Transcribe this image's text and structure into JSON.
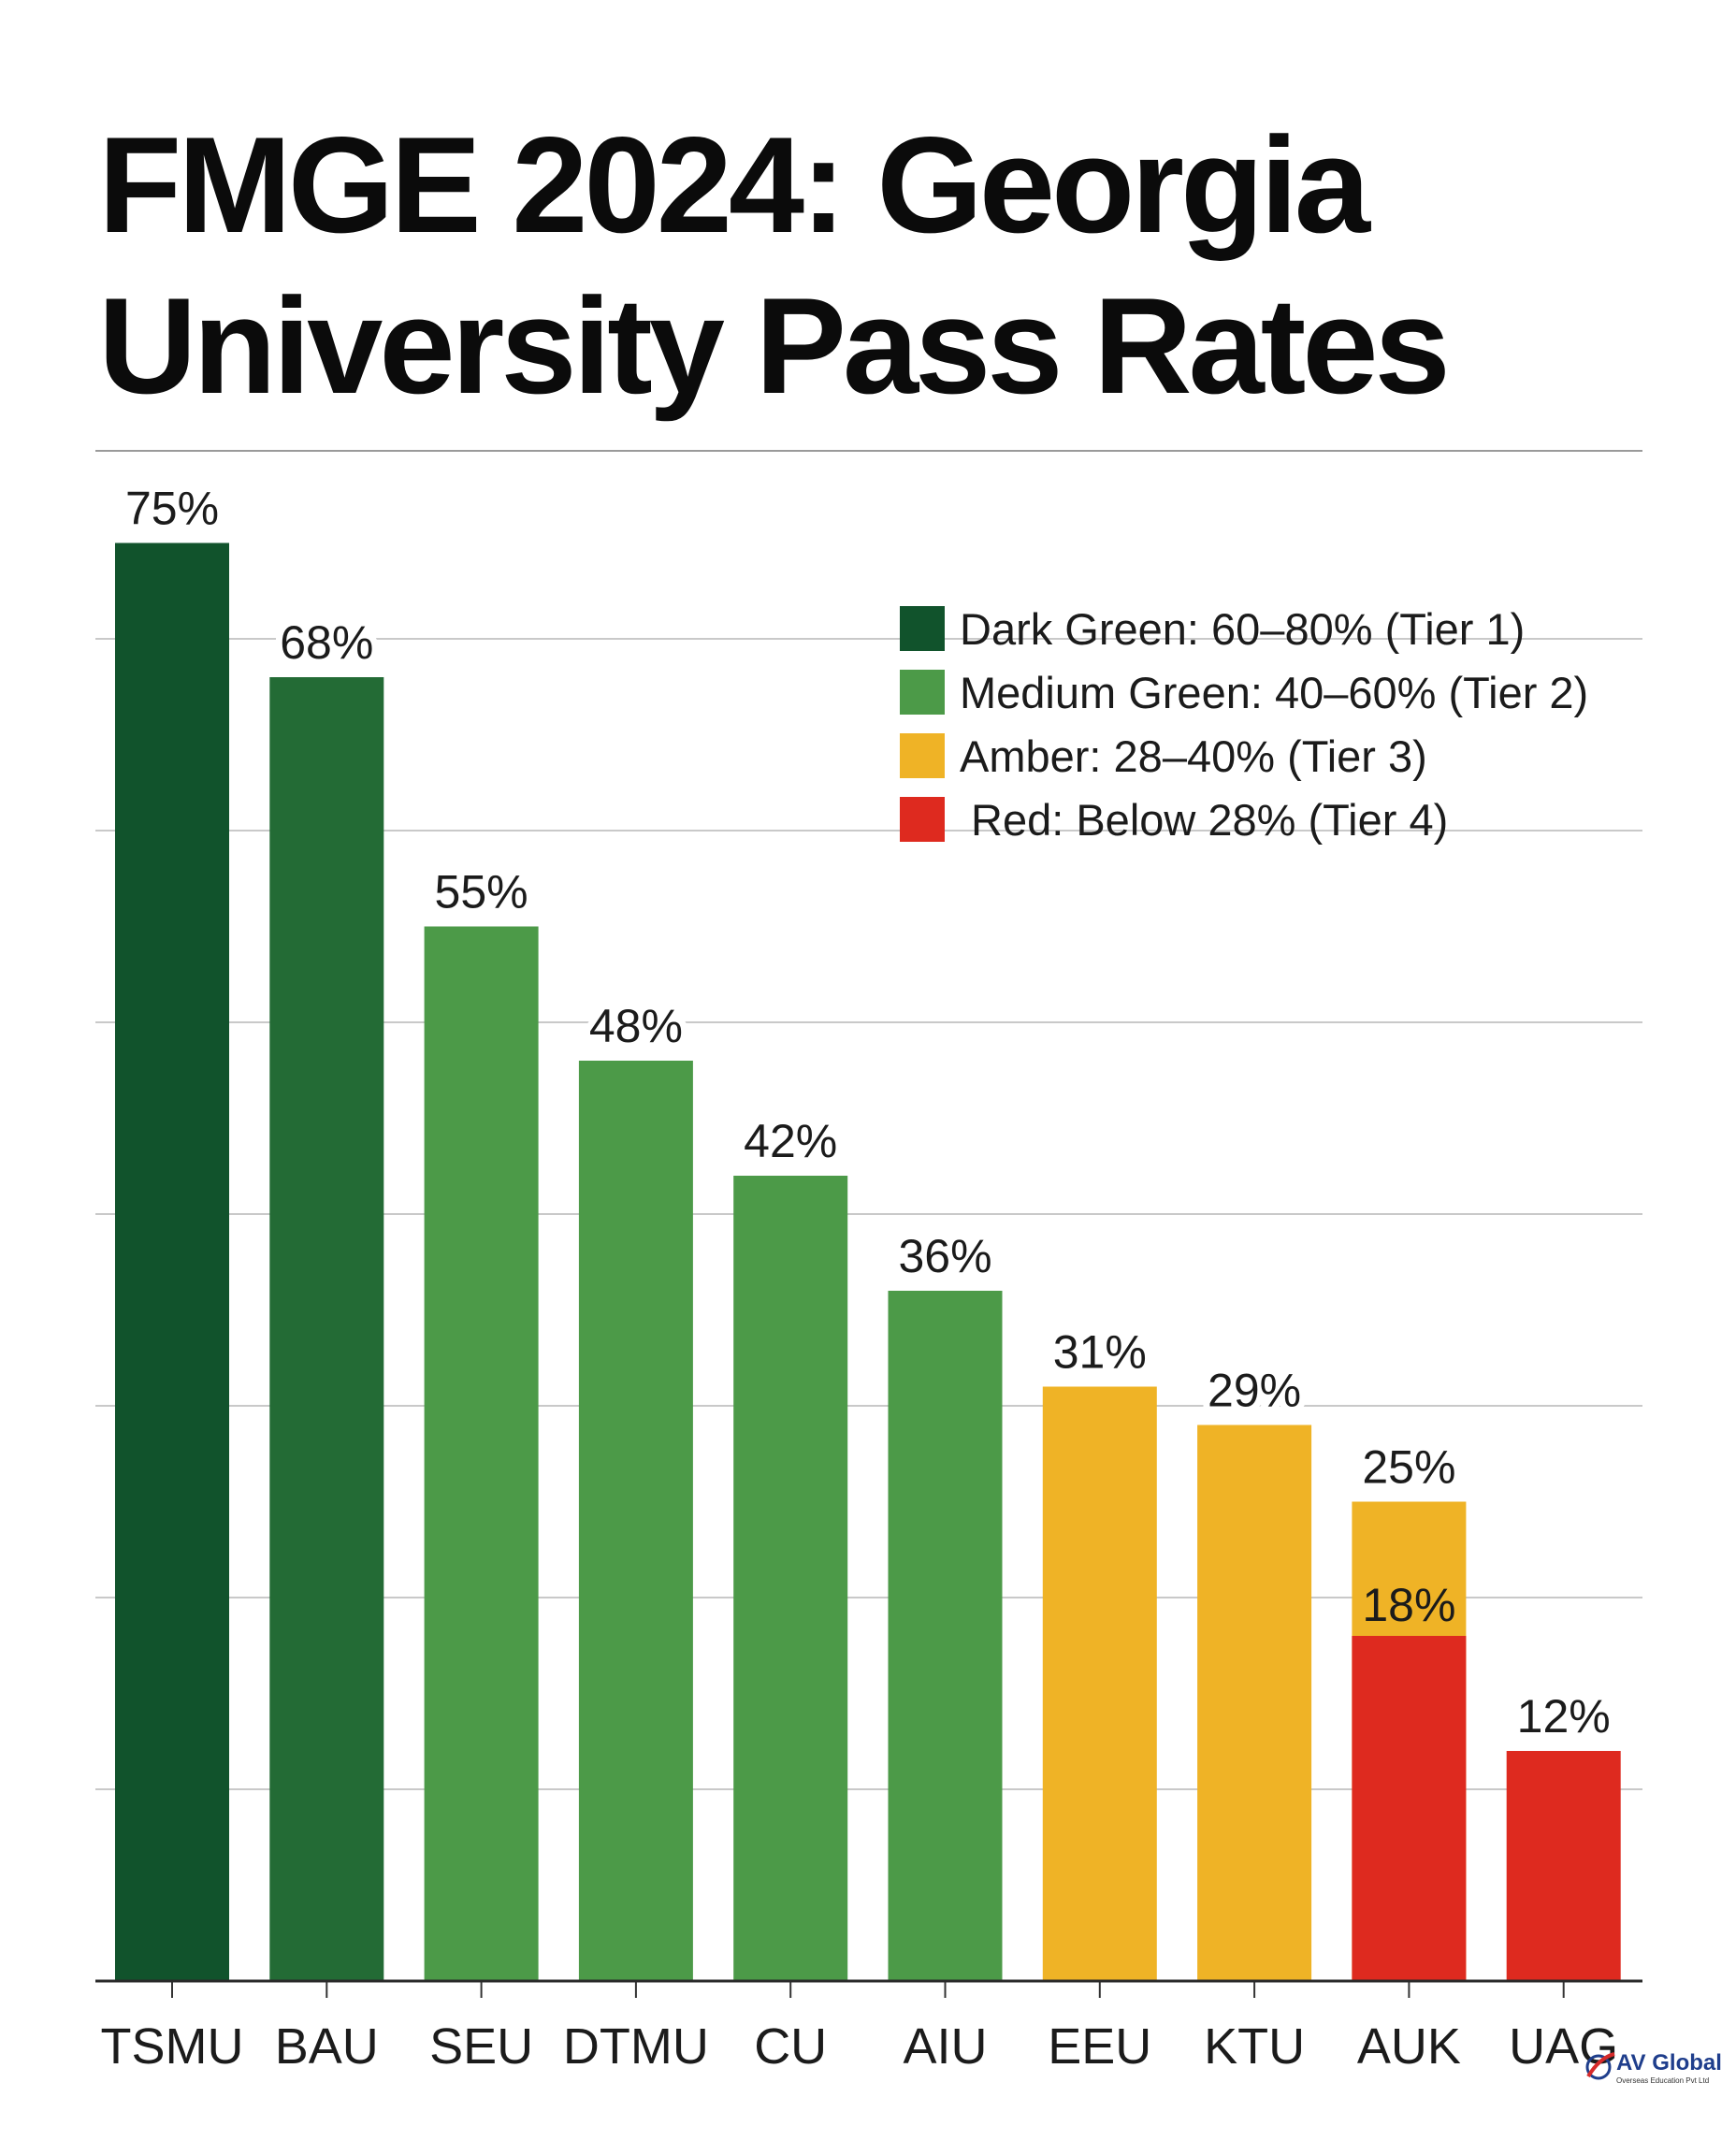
{
  "chart_data": {
    "type": "bar",
    "title": "FMGE 2024: Georgia University Pass Rates",
    "title_lines": [
      "FMGE 2024: Georgia",
      "University Pass Rates"
    ],
    "categories": [
      "TSMU",
      "BAU",
      "SEU",
      "DTMU",
      "CU",
      "AIU",
      "EEU",
      "KTU",
      "AUK",
      "UAG"
    ],
    "values": [
      75,
      68,
      55,
      48,
      42,
      36,
      31,
      29,
      25,
      12
    ],
    "value_labels": [
      "75%",
      "68%",
      "55%",
      "48%",
      "42%",
      "36%",
      "31%",
      "29%",
      "25%",
      "12%"
    ],
    "bar_colors": [
      "#11532c",
      "#236b35",
      "#4c9a48",
      "#4c9a48",
      "#4c9a48",
      "#4c9a48",
      "#efb326",
      "#efb326",
      "#efb326",
      "#de2a1f"
    ],
    "overlay": {
      "category": "AUK",
      "value": 18,
      "label": "18%",
      "color": "#de2a1f"
    },
    "ylim": [
      0,
      80
    ],
    "grid": true,
    "xlabel": "",
    "ylabel": "",
    "legend": {
      "position": "top-right",
      "items": [
        {
          "label": "Dark Green: 60–80% (Tier 1)",
          "color": "#11532c"
        },
        {
          "label": "Medium Green: 40–60% (Tier 2)",
          "color": "#4c9a48"
        },
        {
          "label": "Amber: 28–40% (Tier 3)",
          "color": "#efb326"
        },
        {
          "label": "Red: Below 28% (Tier 4)",
          "color": "#de2a1f"
        }
      ]
    }
  },
  "logo": {
    "text": "AV Global",
    "subtext": "Overseas Education Pvt Ltd"
  }
}
